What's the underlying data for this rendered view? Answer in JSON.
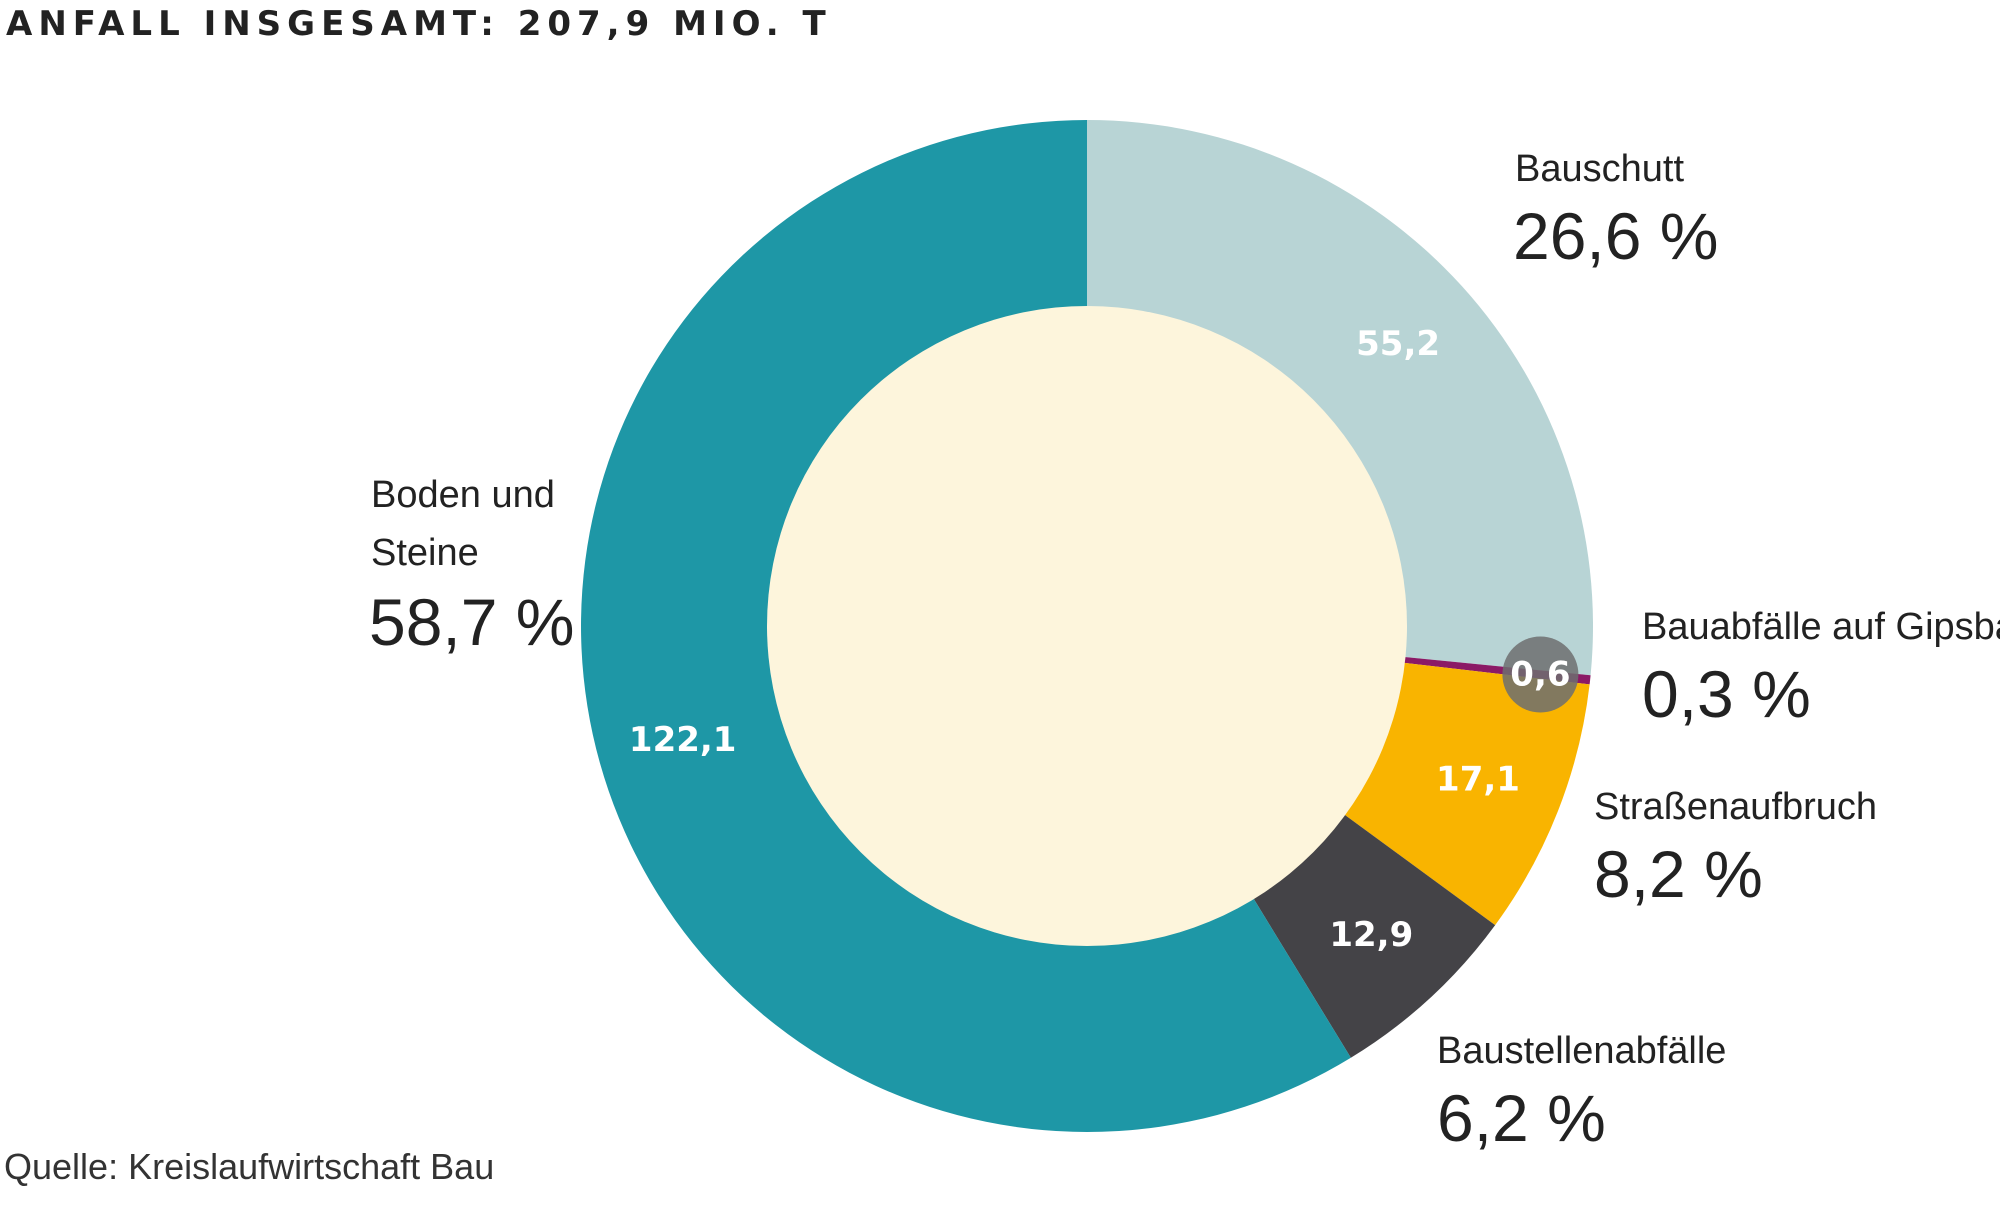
{
  "header": {
    "title": "ANFALL INSGESAMT: 207,9 MIO. T"
  },
  "footer": {
    "source": "Quelle: Kreislaufwirtschaft Bau"
  },
  "chart_data": {
    "type": "pie",
    "title": "ANFALL INSGESAMT: 207,9 MIO. T",
    "total": 207.9,
    "categories": [
      "Bauschutt",
      "Bauabfälle auf Gipsbasis",
      "Straßenaufbruch",
      "Baustellenabfälle",
      "Boden und Steine"
    ],
    "values": [
      55.2,
      0.6,
      17.1,
      12.9,
      122.1
    ],
    "value_labels": [
      "55,2",
      "0,6",
      "17,1",
      "12,9",
      "122,1"
    ],
    "percent_labels": [
      "26,6 %",
      "0,3 %",
      "8,2 %",
      "6,2 %",
      "58,7 %"
    ],
    "category_label_lines": [
      [
        "Bauschutt"
      ],
      [
        "Bauabfälle auf Gipsbasis"
      ],
      [
        "Straßenaufbruch"
      ],
      [
        "Baustellenabfälle"
      ],
      [
        "Boden und",
        "Steine"
      ]
    ],
    "colors": [
      "#b8d4d5",
      "#8b1a66",
      "#f9b400",
      "#444347",
      "#1e97a6"
    ],
    "center_color": "#fdf5dc",
    "legend": "none"
  }
}
